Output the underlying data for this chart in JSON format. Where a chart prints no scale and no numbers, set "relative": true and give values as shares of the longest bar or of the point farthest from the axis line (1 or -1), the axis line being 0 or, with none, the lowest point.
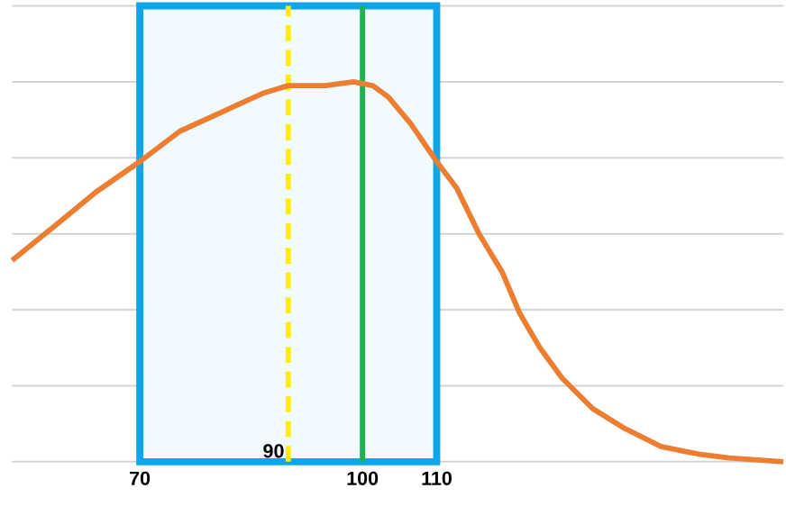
{
  "chart_data": {
    "type": "line",
    "relative": true,
    "grid": "y",
    "marker": "none",
    "line_style": "solid",
    "xlim": [
      52.8,
      156.7
    ],
    "xticks": [
      70,
      100,
      110
    ],
    "series": [
      {
        "color": "#ed7d31",
        "x": [
          52.8,
          58.5,
          64.1,
          70,
          75.4,
          81.0,
          86.6,
          90,
          95,
          98.8,
          101.4,
          103.5,
          106.5,
          110,
          112.7,
          115.7,
          118.8,
          121.2,
          123.9,
          126.9,
          131.0,
          135.1,
          140.2,
          145.3,
          149.4,
          156.7
        ],
        "values": [
          0.53,
          0.62,
          0.71,
          0.79,
          0.87,
          0.92,
          0.97,
          0.99,
          0.99,
          1,
          0.99,
          0.96,
          0.89,
          0.79,
          0.72,
          0.6,
          0.5,
          0.39,
          0.3,
          0.22,
          0.14,
          0.09,
          0.04,
          0.02,
          0.01,
          0
        ]
      }
    ],
    "bands": [
      {
        "axis": "x",
        "from": 70,
        "to": 110,
        "color": "#0ea5e9"
      }
    ],
    "ref_lines": [
      {
        "axis": "x",
        "value": 90,
        "label": "90",
        "color": "#ffee00",
        "line_style": "dashed"
      },
      {
        "axis": "x",
        "value": 100,
        "color": "#22b14c",
        "line_style": "solid"
      }
    ]
  }
}
